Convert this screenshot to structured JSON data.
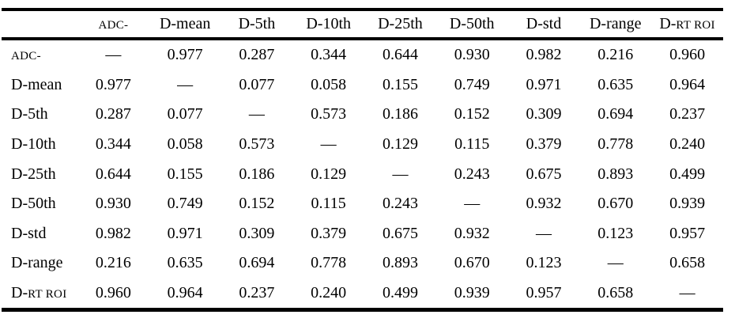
{
  "table": {
    "corner_label": "",
    "diagonal_marker": "—",
    "small_caps_tokens": [
      "ADC-",
      "RT ROI"
    ],
    "colors": {
      "text": "#000000",
      "background": "#ffffff",
      "rules": "#000000"
    },
    "column_headers": [
      "ADC-",
      "D-mean",
      "D-5th",
      "D-10th",
      "D-25th",
      "D-50th",
      "D-std",
      "D-range",
      "D-RT ROI"
    ],
    "rows": [
      {
        "label": "ADC-",
        "values": [
          "—",
          "0.977",
          "0.287",
          "0.344",
          "0.644",
          "0.930",
          "0.982",
          "0.216",
          "0.960"
        ]
      },
      {
        "label": "D-mean",
        "values": [
          "0.977",
          "—",
          "0.077",
          "0.058",
          "0.155",
          "0.749",
          "0.971",
          "0.635",
          "0.964"
        ]
      },
      {
        "label": "D-5th",
        "values": [
          "0.287",
          "0.077",
          "—",
          "0.573",
          "0.186",
          "0.152",
          "0.309",
          "0.694",
          "0.237"
        ]
      },
      {
        "label": "D-10th",
        "values": [
          "0.344",
          "0.058",
          "0.573",
          "—",
          "0.129",
          "0.115",
          "0.379",
          "0.778",
          "0.240"
        ]
      },
      {
        "label": "D-25th",
        "values": [
          "0.644",
          "0.155",
          "0.186",
          "0.129",
          "—",
          "0.243",
          "0.675",
          "0.893",
          "0.499"
        ]
      },
      {
        "label": "D-50th",
        "values": [
          "0.930",
          "0.749",
          "0.152",
          "0.115",
          "0.243",
          "—",
          "0.932",
          "0.670",
          "0.939"
        ]
      },
      {
        "label": "D-std",
        "values": [
          "0.982",
          "0.971",
          "0.309",
          "0.379",
          "0.675",
          "0.932",
          "—",
          "0.123",
          "0.957"
        ]
      },
      {
        "label": "D-range",
        "values": [
          "0.216",
          "0.635",
          "0.694",
          "0.778",
          "0.893",
          "0.670",
          "0.123",
          "—",
          "0.658"
        ]
      },
      {
        "label": "D-RT ROI",
        "values": [
          "0.960",
          "0.964",
          "0.237",
          "0.240",
          "0.499",
          "0.939",
          "0.957",
          "0.658",
          "—"
        ]
      }
    ]
  }
}
